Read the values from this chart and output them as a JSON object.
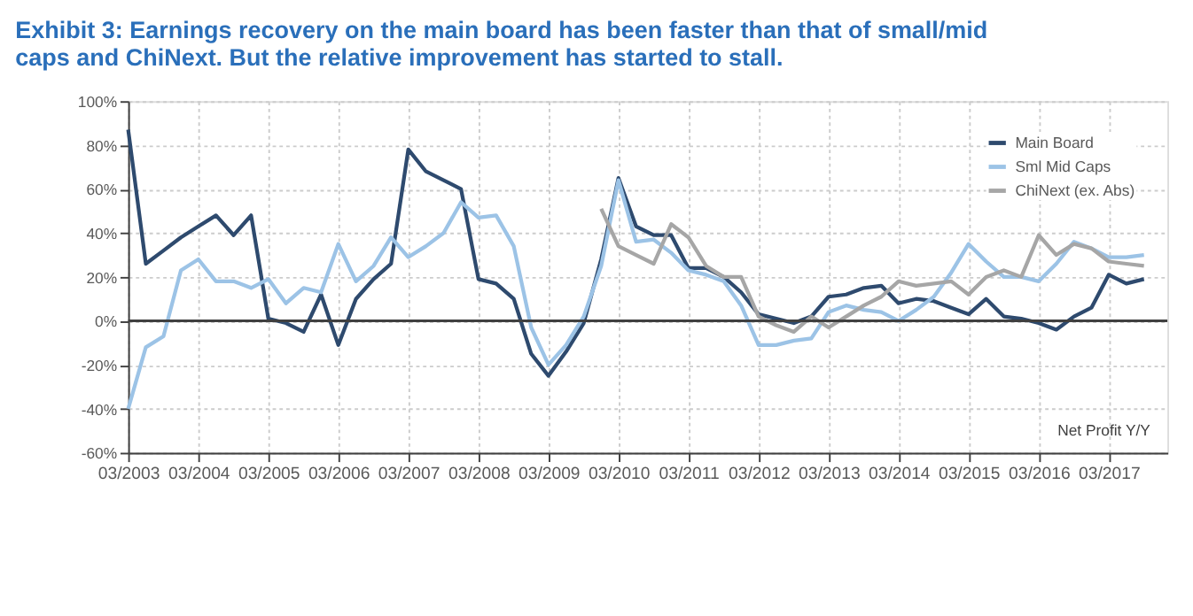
{
  "chart_data": {
    "type": "line",
    "title": "Exhibit 3: Earnings recovery on the main board has been faster than that of small/mid caps and ChiNext. But the relative improvement has started to stall.",
    "annotations": [
      "Net Profit Y/Y"
    ],
    "xlim": [
      "2003-03",
      "2018-01"
    ],
    "xticks": [
      {
        "value": "2003-03",
        "label": "03/2003"
      },
      {
        "value": "2004-03",
        "label": "03/2004"
      },
      {
        "value": "2005-03",
        "label": "03/2005"
      },
      {
        "value": "2006-03",
        "label": "03/2006"
      },
      {
        "value": "2007-03",
        "label": "03/2007"
      },
      {
        "value": "2008-03",
        "label": "03/2008"
      },
      {
        "value": "2009-03",
        "label": "03/2009"
      },
      {
        "value": "2010-03",
        "label": "03/2010"
      },
      {
        "value": "2011-03",
        "label": "03/2011"
      },
      {
        "value": "2012-03",
        "label": "03/2012"
      },
      {
        "value": "2013-03",
        "label": "03/2013"
      },
      {
        "value": "2014-03",
        "label": "03/2014"
      },
      {
        "value": "2015-03",
        "label": "03/2015"
      },
      {
        "value": "2016-03",
        "label": "03/2016"
      },
      {
        "value": "2017-03",
        "label": "03/2017"
      }
    ],
    "ylim": [
      -60,
      100
    ],
    "yticks": [
      {
        "value": -60,
        "label": "-60%"
      },
      {
        "value": -40,
        "label": "-40%"
      },
      {
        "value": -20,
        "label": "-20%"
      },
      {
        "value": 0,
        "label": "0%"
      },
      {
        "value": 20,
        "label": "20%"
      },
      {
        "value": 40,
        "label": "40%"
      },
      {
        "value": 60,
        "label": "60%"
      },
      {
        "value": 80,
        "label": "80%"
      },
      {
        "value": 100,
        "label": "100%"
      }
    ],
    "grid": true,
    "legend": "top right",
    "ref_lines": [
      {
        "axis": "y",
        "value": 0,
        "color": "#404040"
      }
    ],
    "x": [
      "2003-03",
      "2003-06",
      "2003-09",
      "2003-12",
      "2004-03",
      "2004-06",
      "2004-09",
      "2004-12",
      "2005-03",
      "2005-06",
      "2005-09",
      "2005-12",
      "2006-03",
      "2006-06",
      "2006-09",
      "2006-12",
      "2007-03",
      "2007-06",
      "2007-09",
      "2007-12",
      "2008-03",
      "2008-06",
      "2008-09",
      "2008-12",
      "2009-03",
      "2009-06",
      "2009-09",
      "2009-12",
      "2010-03",
      "2010-06",
      "2010-09",
      "2010-12",
      "2011-03",
      "2011-06",
      "2011-09",
      "2011-12",
      "2012-03",
      "2012-06",
      "2012-09",
      "2012-12",
      "2013-03",
      "2013-06",
      "2013-09",
      "2013-12",
      "2014-03",
      "2014-06",
      "2014-09",
      "2014-12",
      "2015-03",
      "2015-06",
      "2015-09",
      "2015-12",
      "2016-03",
      "2016-06",
      "2016-09",
      "2016-12",
      "2017-03",
      "2017-06",
      "2017-09"
    ],
    "series": [
      {
        "name": "Main Board",
        "color": "#2e4a6e",
        "values": [
          87,
          26,
          32,
          38,
          43,
          48,
          39,
          48,
          1,
          -1,
          -5,
          12,
          -11,
          10,
          19,
          26,
          78,
          68,
          64,
          60,
          19,
          17,
          10,
          -15,
          -25,
          -14,
          -1,
          28,
          65,
          43,
          39,
          39,
          24,
          24,
          20,
          13,
          3,
          1,
          -1,
          2,
          11,
          12,
          15,
          16,
          8,
          10,
          9,
          6,
          3,
          10,
          2,
          1,
          -1,
          -4,
          2,
          6,
          21,
          17,
          19
        ]
      },
      {
        "name": "Sml Mid Caps",
        "color": "#9cc3e6",
        "values": [
          -40,
          -12,
          -7,
          23,
          28,
          18,
          18,
          15,
          19,
          8,
          15,
          13,
          35,
          18,
          25,
          38,
          29,
          34,
          40,
          54,
          47,
          48,
          34,
          -3,
          -20,
          -11,
          2,
          25,
          64,
          36,
          37,
          31,
          23,
          21,
          18,
          7,
          -11,
          -11,
          -9,
          -8,
          4,
          7,
          5,
          4,
          0,
          5,
          11,
          22,
          35,
          27,
          20,
          20,
          18,
          26,
          36,
          33,
          29,
          29,
          30
        ]
      },
      {
        "name": "ChiNext (ex. Abs)",
        "color": "#a6a6a6",
        "values": [
          null,
          null,
          null,
          null,
          null,
          null,
          null,
          null,
          null,
          null,
          null,
          null,
          null,
          null,
          null,
          null,
          null,
          null,
          null,
          null,
          null,
          null,
          null,
          null,
          null,
          null,
          null,
          51,
          34,
          30,
          26,
          44,
          38,
          25,
          20,
          20,
          2,
          -2,
          -5,
          2,
          -3,
          2,
          7,
          11,
          18,
          16,
          17,
          18,
          12,
          20,
          23,
          20,
          39,
          30,
          35,
          33,
          27,
          26,
          25
        ]
      }
    ]
  }
}
